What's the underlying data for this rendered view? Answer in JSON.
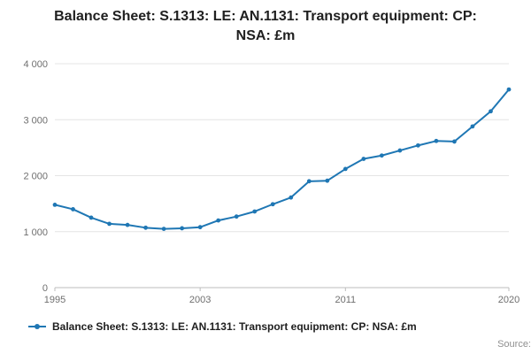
{
  "page": {
    "title": "Balance Sheet: S.1313: LE: AN.1131: Transport equipment: CP: NSA: £m",
    "source": "Source:"
  },
  "legend": {
    "label": "Balance Sheet: S.1313: LE: AN.1131: Transport equipment: CP: NSA: £m"
  },
  "chart_data": {
    "type": "line",
    "title": "Balance Sheet: S.1313: LE: AN.1131: Transport equipment: CP: NSA: £m",
    "x": [
      1995,
      1996,
      1997,
      1998,
      1999,
      2000,
      2001,
      2002,
      2003,
      2004,
      2005,
      2006,
      2007,
      2008,
      2009,
      2010,
      2011,
      2012,
      2013,
      2014,
      2015,
      2016,
      2017,
      2018,
      2019,
      2020
    ],
    "values": [
      1480,
      1400,
      1250,
      1140,
      1120,
      1070,
      1050,
      1060,
      1080,
      1200,
      1270,
      1360,
      1490,
      1610,
      1900,
      1910,
      2120,
      2300,
      2360,
      2450,
      2540,
      2620,
      2610,
      2880,
      3150,
      3540
    ],
    "xlim": [
      1995,
      2020
    ],
    "ylim": [
      0,
      4000
    ],
    "xticks": [
      1995,
      2003,
      2011,
      2020
    ],
    "xtick_labels": [
      "1995",
      "2003",
      "2011",
      "2020"
    ],
    "yticks": [
      0,
      1000,
      2000,
      3000,
      4000
    ],
    "ytick_labels": [
      "0",
      "1 000",
      "2 000",
      "3 000",
      "4 000"
    ],
    "xlabel": "",
    "ylabel": "",
    "grid": true,
    "legend_position": "bottom",
    "line_color": "#1f77b4",
    "marker": "circle",
    "axis_color": "#bdbdbd",
    "grid_color": "#e4e4e4",
    "tick_text_color": "#6f6f6f"
  }
}
